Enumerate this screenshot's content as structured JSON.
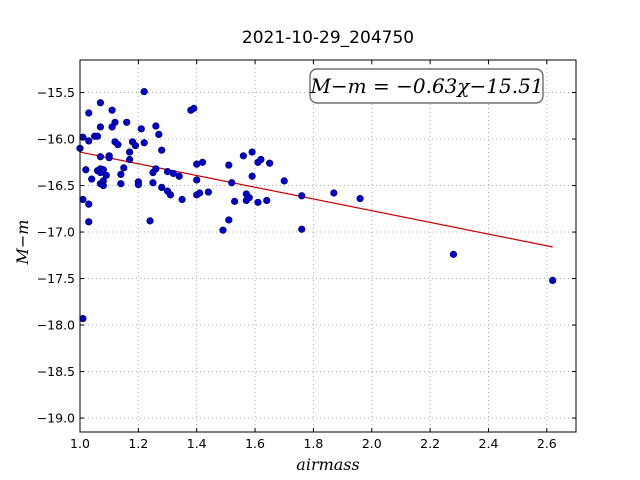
{
  "chart_data": {
    "type": "scatter",
    "title": "2021-10-29_204750",
    "xlabel": "airmass",
    "ylabel": "M−m",
    "xlim": [
      1.0,
      2.7
    ],
    "ylim": [
      -15.15,
      -19.15
    ],
    "y_inverted": true,
    "grid": true,
    "xticks": [
      "1.0",
      "1.2",
      "1.4",
      "1.6",
      "1.8",
      "2.0",
      "2.2",
      "2.4",
      "2.6"
    ],
    "yticks": [
      "−15.5",
      "−16.0",
      "−16.5",
      "−17.0",
      "−17.5",
      "−18.0",
      "−18.5",
      "−19.0"
    ],
    "annotation": "M−m = −0.63χ−15.51",
    "colors": {
      "points": "#0000cc",
      "fit_line": "#cc0000"
    },
    "fit": {
      "slope": -0.63,
      "intercept": -15.51,
      "x_range": [
        1.0,
        2.62
      ]
    },
    "points": [
      {
        "x": 1.0,
        "y": -16.1
      },
      {
        "x": 1.01,
        "y": -15.98
      },
      {
        "x": 1.01,
        "y": -16.65
      },
      {
        "x": 1.01,
        "y": -17.93
      },
      {
        "x": 1.02,
        "y": -16.33
      },
      {
        "x": 1.03,
        "y": -15.72
      },
      {
        "x": 1.03,
        "y": -16.02
      },
      {
        "x": 1.03,
        "y": -16.7
      },
      {
        "x": 1.03,
        "y": -16.89
      },
      {
        "x": 1.04,
        "y": -16.43
      },
      {
        "x": 1.05,
        "y": -15.97
      },
      {
        "x": 1.06,
        "y": -15.97
      },
      {
        "x": 1.06,
        "y": -16.34
      },
      {
        "x": 1.07,
        "y": -15.61
      },
      {
        "x": 1.07,
        "y": -15.87
      },
      {
        "x": 1.07,
        "y": -16.19
      },
      {
        "x": 1.07,
        "y": -16.32
      },
      {
        "x": 1.07,
        "y": -16.36
      },
      {
        "x": 1.07,
        "y": -16.48
      },
      {
        "x": 1.08,
        "y": -16.33
      },
      {
        "x": 1.08,
        "y": -16.45
      },
      {
        "x": 1.08,
        "y": -16.5
      },
      {
        "x": 1.09,
        "y": -16.39
      },
      {
        "x": 1.1,
        "y": -16.18
      },
      {
        "x": 1.1,
        "y": -16.2
      },
      {
        "x": 1.11,
        "y": -15.69
      },
      {
        "x": 1.11,
        "y": -15.87
      },
      {
        "x": 1.12,
        "y": -15.82
      },
      {
        "x": 1.12,
        "y": -16.03
      },
      {
        "x": 1.13,
        "y": -16.06
      },
      {
        "x": 1.14,
        "y": -16.38
      },
      {
        "x": 1.14,
        "y": -16.48
      },
      {
        "x": 1.15,
        "y": -16.31
      },
      {
        "x": 1.16,
        "y": -15.82
      },
      {
        "x": 1.17,
        "y": -16.14
      },
      {
        "x": 1.17,
        "y": -16.22
      },
      {
        "x": 1.18,
        "y": -16.03
      },
      {
        "x": 1.19,
        "y": -16.07
      },
      {
        "x": 1.2,
        "y": -16.46
      },
      {
        "x": 1.2,
        "y": -16.49
      },
      {
        "x": 1.21,
        "y": -15.89
      },
      {
        "x": 1.22,
        "y": -15.49
      },
      {
        "x": 1.22,
        "y": -16.04
      },
      {
        "x": 1.24,
        "y": -16.88
      },
      {
        "x": 1.25,
        "y": -16.36
      },
      {
        "x": 1.25,
        "y": -16.47
      },
      {
        "x": 1.26,
        "y": -15.86
      },
      {
        "x": 1.26,
        "y": -16.32
      },
      {
        "x": 1.27,
        "y": -15.95
      },
      {
        "x": 1.28,
        "y": -16.12
      },
      {
        "x": 1.28,
        "y": -16.52
      },
      {
        "x": 1.3,
        "y": -16.35
      },
      {
        "x": 1.3,
        "y": -16.56
      },
      {
        "x": 1.31,
        "y": -16.6
      },
      {
        "x": 1.32,
        "y": -16.37
      },
      {
        "x": 1.34,
        "y": -16.4
      },
      {
        "x": 1.35,
        "y": -16.65
      },
      {
        "x": 1.38,
        "y": -15.69
      },
      {
        "x": 1.39,
        "y": -15.67
      },
      {
        "x": 1.4,
        "y": -16.27
      },
      {
        "x": 1.4,
        "y": -16.44
      },
      {
        "x": 1.4,
        "y": -16.6
      },
      {
        "x": 1.41,
        "y": -16.58
      },
      {
        "x": 1.42,
        "y": -16.25
      },
      {
        "x": 1.44,
        "y": -16.57
      },
      {
        "x": 1.49,
        "y": -16.98
      },
      {
        "x": 1.51,
        "y": -16.87
      },
      {
        "x": 1.51,
        "y": -16.28
      },
      {
        "x": 1.52,
        "y": -16.47
      },
      {
        "x": 1.53,
        "y": -16.67
      },
      {
        "x": 1.56,
        "y": -16.18
      },
      {
        "x": 1.57,
        "y": -16.59
      },
      {
        "x": 1.57,
        "y": -16.66
      },
      {
        "x": 1.58,
        "y": -16.63
      },
      {
        "x": 1.59,
        "y": -16.14
      },
      {
        "x": 1.59,
        "y": -16.4
      },
      {
        "x": 1.61,
        "y": -16.25
      },
      {
        "x": 1.61,
        "y": -16.68
      },
      {
        "x": 1.62,
        "y": -16.22
      },
      {
        "x": 1.64,
        "y": -16.66
      },
      {
        "x": 1.65,
        "y": -16.26
      },
      {
        "x": 1.7,
        "y": -16.45
      },
      {
        "x": 1.76,
        "y": -16.61
      },
      {
        "x": 1.76,
        "y": -16.97
      },
      {
        "x": 1.87,
        "y": -16.58
      },
      {
        "x": 1.96,
        "y": -16.64
      },
      {
        "x": 2.28,
        "y": -17.24
      },
      {
        "x": 2.62,
        "y": -17.52
      }
    ]
  }
}
